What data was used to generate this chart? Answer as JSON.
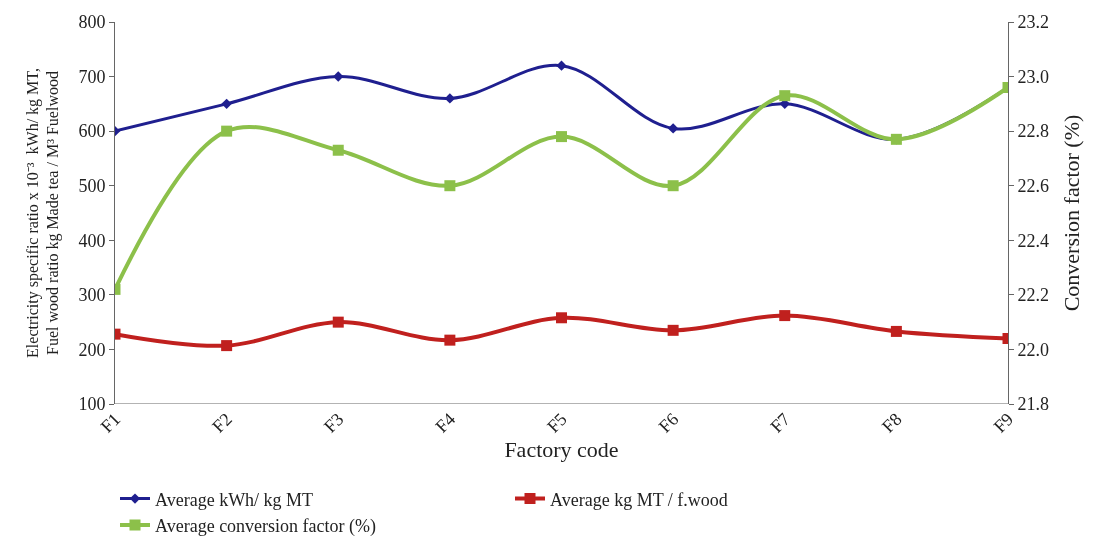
{
  "chart_data": {
    "type": "line",
    "xlabel": "Factory code",
    "ylabel": "Electricity specific ratio x 10⁻³  kWh/ kg MT,\nFuel wood ratio kg Made tea / M³ Fuelwood",
    "y2label": "Conversion factor (%)",
    "categories": [
      "F1",
      "F2",
      "F3",
      "F4",
      "F5",
      "F6",
      "F7",
      "F8",
      "F9"
    ],
    "series": [
      {
        "name": "Average kWh/ kg MT",
        "color": "#1f1f8f",
        "marker": "diamond",
        "values": [
          600,
          650,
          700,
          660,
          720,
          605,
          650,
          585,
          680
        ]
      },
      {
        "name": "Average kg MT / f.wood",
        "color": "#c0201e",
        "marker": "square",
        "values": [
          228,
          207,
          250,
          217,
          258,
          235,
          262,
          233,
          220
        ]
      },
      {
        "name": "Average conversion factor (%)",
        "color": "#8cc04a",
        "marker": "square",
        "axis": "y2",
        "values": [
          22.22,
          22.8,
          22.73,
          22.6,
          22.78,
          22.6,
          22.93,
          22.77,
          22.96
        ]
      }
    ],
    "ylim": [
      100,
      800
    ],
    "yticks": [
      100,
      200,
      300,
      400,
      500,
      600,
      700,
      800
    ],
    "y2lim": [
      21.8,
      23.2
    ],
    "y2ticks": [
      {
        "value": 21.8,
        "label": "21.8"
      },
      {
        "value": 22.0,
        "label": "22.0"
      },
      {
        "value": 22.2,
        "label": "22.2"
      },
      {
        "value": 22.4,
        "label": "22.4"
      },
      {
        "value": 22.6,
        "label": "22.6"
      },
      {
        "value": 22.8,
        "label": "22.8"
      },
      {
        "value": 23.0,
        "label": "23.0"
      },
      {
        "value": 23.2,
        "label": "23.2"
      }
    ],
    "legend": "bottom",
    "line_style": "solid"
  }
}
